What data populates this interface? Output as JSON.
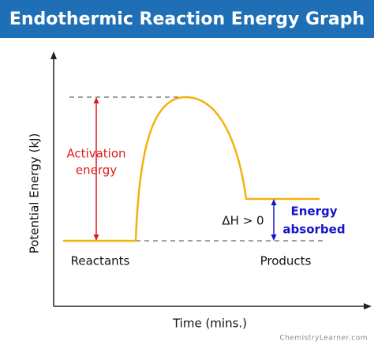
{
  "header": {
    "title": "Endothermic Reaction Energy Graph"
  },
  "axes": {
    "y_label": "Potential Energy (kJ)",
    "x_label": "Time (mins.)"
  },
  "annotations": {
    "activation": [
      "Activation",
      "energy"
    ],
    "delta_h": "ΔH > 0",
    "absorbed": [
      "Energy",
      "absorbed"
    ],
    "reactants": "Reactants",
    "products": "Products"
  },
  "footer": {
    "watermark": "ChemistryLearner.com"
  }
}
